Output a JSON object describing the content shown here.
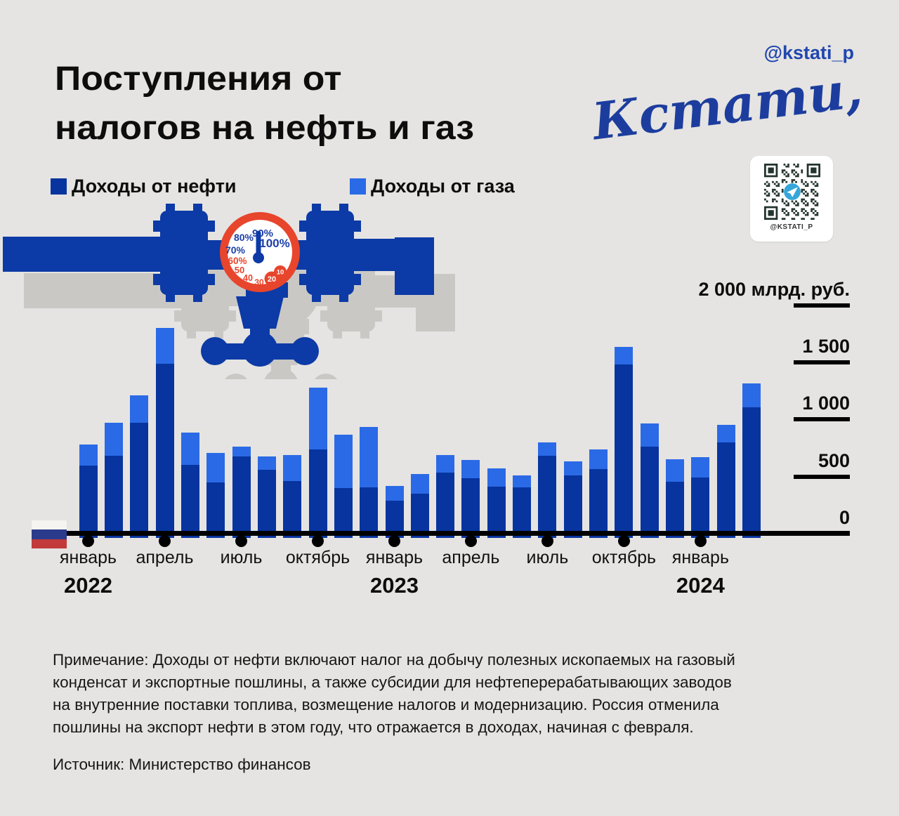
{
  "header": {
    "title_line1": "Поступления от",
    "title_line2": "налогов на нефть и газ",
    "handle": "@kstati_p",
    "logo_text": "Кстати,",
    "qr_caption": "@KSTATI_P"
  },
  "legend": [
    {
      "label": "Доходы от нефти",
      "color": "#07349f"
    },
    {
      "label": "Доходы от газа",
      "color": "#2b6ae6"
    }
  ],
  "gauge": {
    "dial_labels": [
      "100%",
      "90%",
      "80%",
      "70%",
      "60%",
      "50",
      "40",
      "30"
    ],
    "badge_labels": [
      "20",
      "10"
    ]
  },
  "colors": {
    "background": "#e5e4e2",
    "oil": "#07349f",
    "gas": "#2b6ae6",
    "pipe": "#0c3aa6",
    "shadow": "#c9c8c5",
    "gauge_red": "#e8452d",
    "logo_blue": "#1d3d9e"
  },
  "chart_data": {
    "type": "bar",
    "stacked": true,
    "title": "Поступления от налогов на нефть и газ",
    "unit_note": "млрд. руб.",
    "ylim": [
      0,
      2000
    ],
    "grid": false,
    "legend_position": "top-left",
    "months": [
      "2022-01",
      "2022-02",
      "2022-03",
      "2022-04",
      "2022-05",
      "2022-06",
      "2022-07",
      "2022-08",
      "2022-09",
      "2022-10",
      "2022-11",
      "2022-12",
      "2023-01",
      "2023-02",
      "2023-03",
      "2023-04",
      "2023-05",
      "2023-06",
      "2023-07",
      "2023-08",
      "2023-09",
      "2023-10",
      "2023-11",
      "2023-12",
      "2024-01",
      "2024-02",
      "2024-03"
    ],
    "series": [
      {
        "name": "Доходы от нефти",
        "color": "#07349f",
        "values": [
          595,
          685,
          969,
          1488,
          605,
          451,
          679,
          561,
          463,
          735,
          401,
          407,
          290,
          352,
          537,
          488,
          414,
          407,
          685,
          512,
          568,
          1481,
          759,
          457,
          494,
          802,
          1105
        ]
      },
      {
        "name": "Доходы от газа",
        "color": "#2b6ae6",
        "values": [
          185,
          285,
          241,
          312,
          280,
          259,
          81,
          118,
          228,
          543,
          469,
          525,
          130,
          173,
          154,
          160,
          160,
          105,
          117,
          124,
          173,
          155,
          204,
          197,
          179,
          149,
          210
        ]
      }
    ],
    "y_ticks": [
      {
        "label": "2 000 млрд. руб.",
        "value": 2000
      },
      {
        "label": "1 500",
        "value": 1500
      },
      {
        "label": "1 000",
        "value": 1000
      },
      {
        "label": "500",
        "value": 500
      },
      {
        "label": "0",
        "value": 0
      }
    ],
    "x_ticks": [
      {
        "label": "январь",
        "month_index": 0
      },
      {
        "label": "апрель",
        "month_index": 3
      },
      {
        "label": "июль",
        "month_index": 6
      },
      {
        "label": "октябрь",
        "month_index": 9
      },
      {
        "label": "январь",
        "month_index": 12
      },
      {
        "label": "апрель",
        "month_index": 15
      },
      {
        "label": "июль",
        "month_index": 18
      },
      {
        "label": "октябрь",
        "month_index": 21
      },
      {
        "label": "январь",
        "month_index": 24
      }
    ],
    "year_labels": [
      {
        "text": "2022",
        "month_index": 0
      },
      {
        "text": "2023",
        "month_index": 12
      },
      {
        "text": "2024",
        "month_index": 24
      }
    ]
  },
  "footer": {
    "note_lines": [
      "Примечание: Доходы от нефти включают налог на добычу полезных ископаемых на газовый",
      "конденсат и экспортные пошлины, а также субсидии для нефтеперерабатывающих заводов",
      "на внутренние поставки топлива, возмещение налогов и модернизацию. Россия отменила",
      "пошлины на экспорт нефти в этом году, что отражается в доходах, начиная с февраля."
    ],
    "source": "Источник: Министерство финансов"
  }
}
